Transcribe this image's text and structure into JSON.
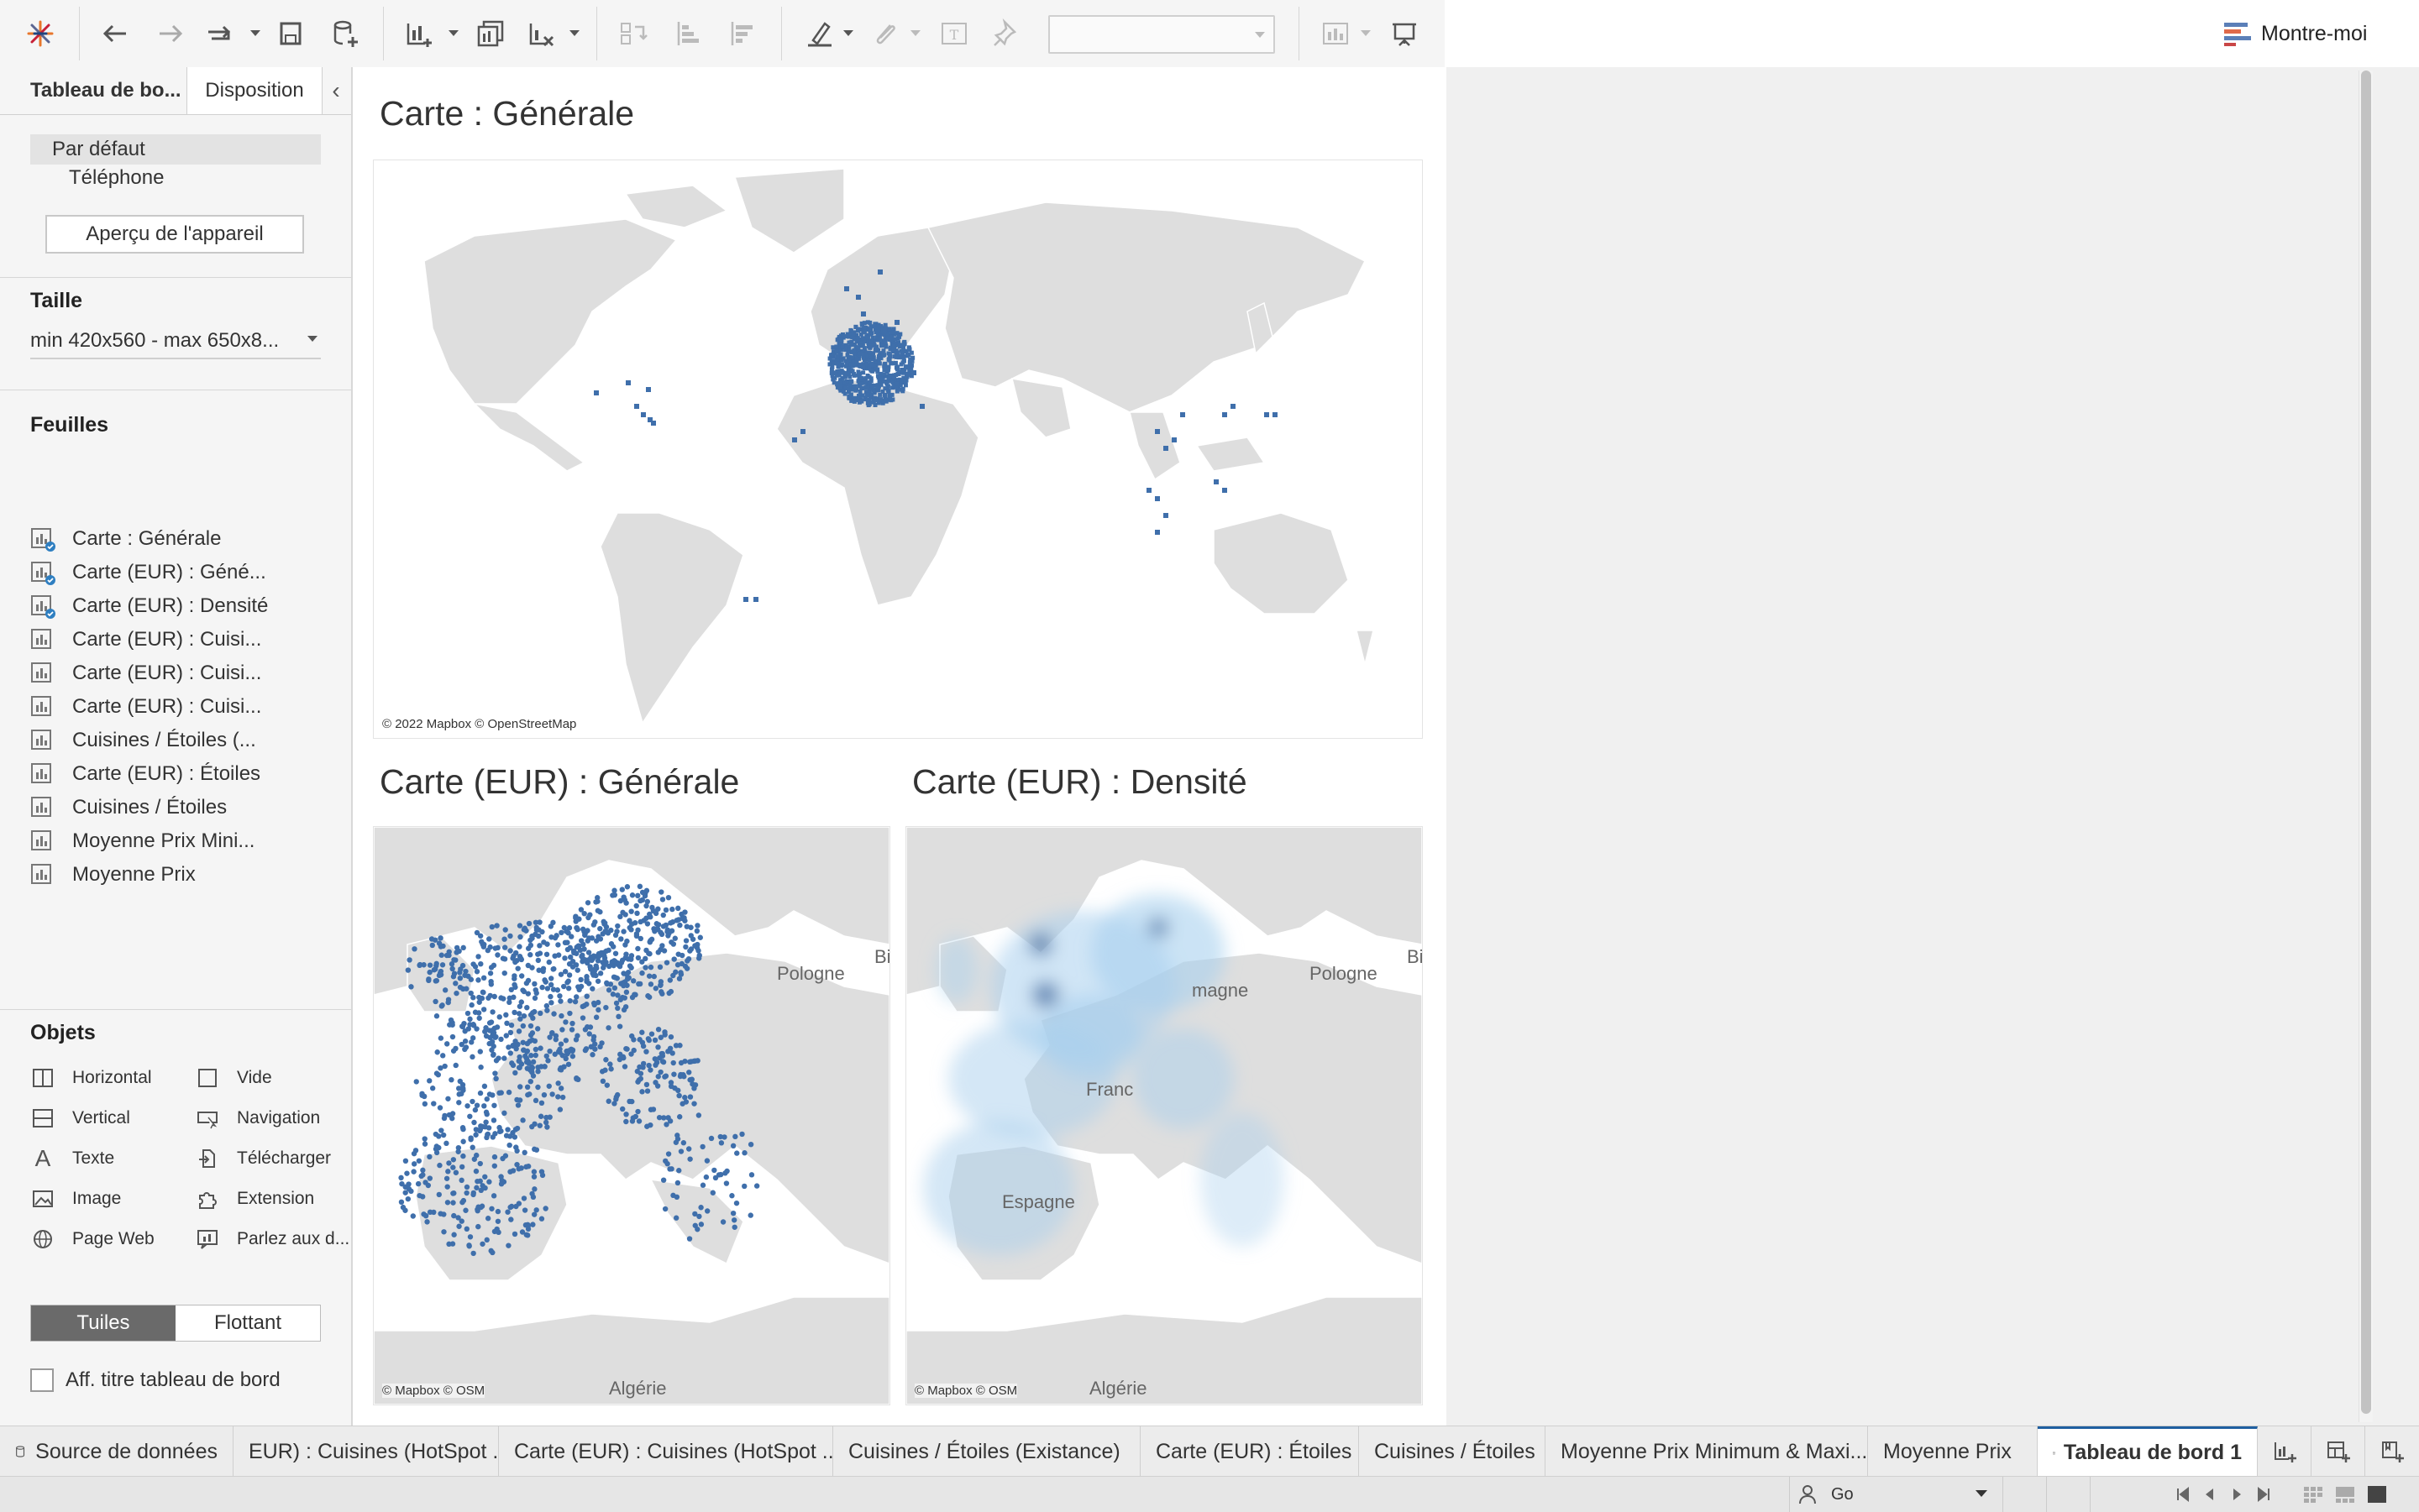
{
  "toolbar": {
    "show_me_label": "Montre-moi",
    "combo_value": ""
  },
  "left_pane": {
    "tab_dashboard": "Tableau de bo...",
    "tab_layout": "Disposition",
    "device_default": "Par défaut",
    "device_phone": "Téléphone",
    "device_preview_button": "Aperçu de l'appareil",
    "size_label": "Taille",
    "size_value": "min 420x560 - max 650x8...",
    "sheets_label": "Feuilles",
    "sheets": [
      {
        "label": "Carte : Générale",
        "used": true
      },
      {
        "label": "Carte (EUR) : Géné...",
        "used": true
      },
      {
        "label": "Carte (EUR) : Densité",
        "used": true
      },
      {
        "label": "Carte (EUR) : Cuisi...",
        "used": false
      },
      {
        "label": "Carte (EUR) : Cuisi...",
        "used": false
      },
      {
        "label": "Carte (EUR) : Cuisi...",
        "used": false
      },
      {
        "label": "Cuisines / Étoiles (...",
        "used": false
      },
      {
        "label": "Carte (EUR) : Étoiles",
        "used": false
      },
      {
        "label": "Cuisines / Étoiles",
        "used": false
      },
      {
        "label": "Moyenne Prix Mini...",
        "used": false
      },
      {
        "label": "Moyenne Prix",
        "used": false
      }
    ],
    "objects_label": "Objets",
    "objects": {
      "horizontal": "Horizontal",
      "blank": "Vide",
      "vertical": "Vertical",
      "navigation": "Navigation",
      "text": "Texte",
      "download": "Télécharger",
      "image": "Image",
      "extension": "Extension",
      "web_page": "Page Web",
      "ask_data": "Parlez aux d..."
    },
    "tiled": "Tuiles",
    "floating": "Flottant",
    "show_title": "Aff. titre tableau de bord"
  },
  "dashboard": {
    "view1_title": "Carte : Générale",
    "view1_attribution": "© 2022 Mapbox © OpenStreetMap",
    "view2_title": "Carte (EUR) : Générale",
    "view2_attribution": "© Mapbox © OSM",
    "view3_title": "Carte (EUR) : Densité",
    "view3_attribution": "© Mapbox © OSM",
    "map_labels": {
      "poland": "Pologne",
      "germany_partial": "magne",
      "france_partial": "Franc",
      "spain": "Espagne",
      "algeria": "Algérie",
      "belarus_partial": "Bi"
    },
    "colors": {
      "mark_blue": "#3f6fab",
      "density_light": "#a9d0ee",
      "density_dark": "#1f4e8c"
    }
  },
  "sheet_tabs": {
    "data_source": "Source de données",
    "tabs": [
      "EUR) : Cuisines (HotSpot ...",
      "Carte (EUR) : Cuisines (HotSpot ...",
      "Cuisines / Étoiles (Existance)",
      "Carte (EUR) : Étoiles",
      "Cuisines / Étoiles",
      "Moyenne Prix Minimum & Maxi...",
      "Moyenne Prix"
    ],
    "active_tab": "Tableau de bord 1"
  },
  "status_bar": {
    "user": "Go"
  }
}
